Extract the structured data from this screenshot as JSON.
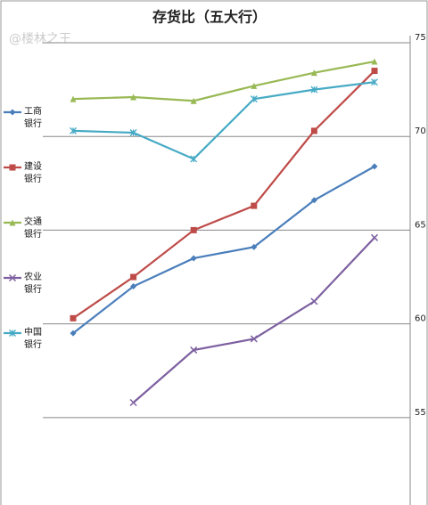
{
  "chart_data": {
    "type": "line",
    "title": "存货比（五大行）",
    "watermark": "@楼林之王",
    "categories": [
      null,
      null,
      null,
      null,
      null,
      null
    ],
    "ylim": [
      51,
      75
    ],
    "yticks": [
      55,
      60,
      65,
      70,
      75
    ],
    "grid": true,
    "legend": "left",
    "series": [
      {
        "name": "工商银行",
        "color": "#4a7ebb",
        "marker": "diamond",
        "values": [
          59.5,
          62.0,
          63.5,
          64.1,
          66.6,
          68.4
        ]
      },
      {
        "name": "建设银行",
        "color": "#be4b48",
        "marker": "square",
        "values": [
          60.3,
          62.5,
          65.0,
          66.3,
          70.3,
          73.5
        ]
      },
      {
        "name": "交通银行",
        "color": "#98b954",
        "marker": "triangle",
        "values": [
          72.0,
          72.1,
          71.9,
          72.7,
          73.4,
          74.0
        ]
      },
      {
        "name": "农业银行",
        "color": "#7d60a0",
        "marker": "x",
        "values": [
          null,
          55.8,
          58.6,
          59.2,
          61.2,
          64.6
        ]
      },
      {
        "name": "中国银行",
        "color": "#46aac5",
        "marker": "star",
        "values": [
          70.3,
          70.2,
          68.8,
          72.0,
          72.5,
          72.9
        ]
      }
    ]
  }
}
